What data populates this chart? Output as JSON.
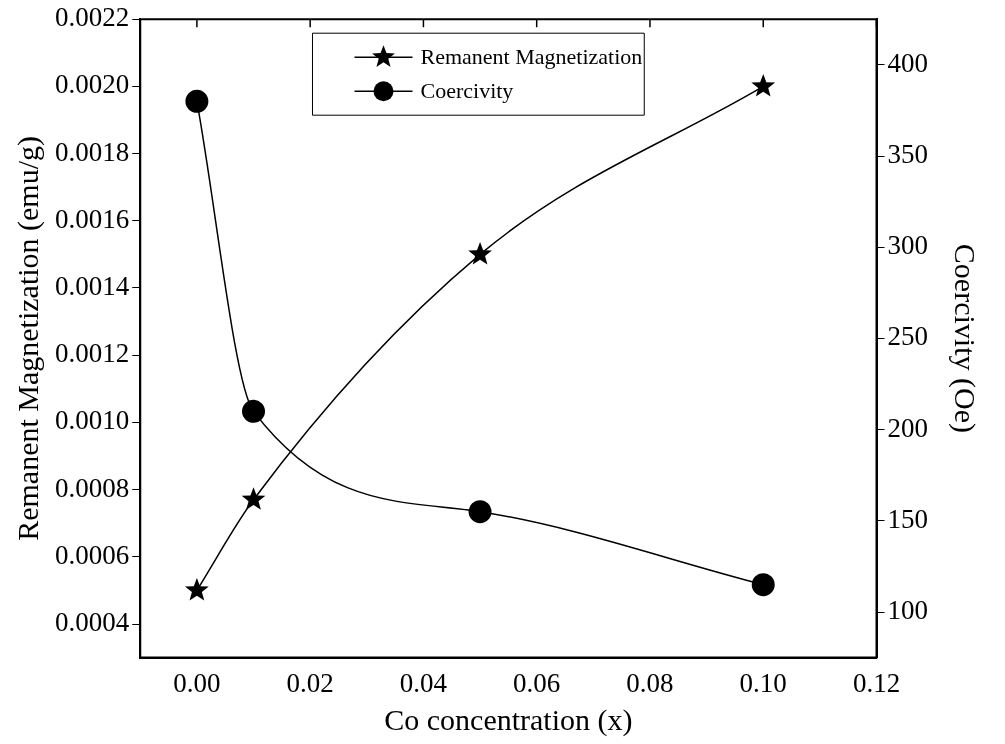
{
  "chart_data": {
    "type": "line",
    "xlabel": "Co concentration (x)",
    "ylabel": "Remanent Magnetization (emu/g)",
    "y2label": "Coercivity (Oe)",
    "xlim": [
      -0.01,
      0.12
    ],
    "xticks": [
      {
        "value": 0,
        "label": "0.00"
      },
      {
        "value": 0.02,
        "label": "0.02"
      },
      {
        "value": 0.04,
        "label": "0.04"
      },
      {
        "value": 0.06,
        "label": "0.06"
      },
      {
        "value": 0.08,
        "label": "0.08"
      },
      {
        "value": 0.1,
        "label": "0.10"
      },
      {
        "value": 0.12,
        "label": "0.12"
      }
    ],
    "ylim": [
      0.0003,
      0.0022
    ],
    "yticks": [
      {
        "value": 0.0004,
        "label": "0.0004"
      },
      {
        "value": 0.0006,
        "label": "0.0006"
      },
      {
        "value": 0.0008,
        "label": "0.0008"
      },
      {
        "value": 0.001,
        "label": "0.0010"
      },
      {
        "value": 0.0012,
        "label": "0.0012"
      },
      {
        "value": 0.0014,
        "label": "0.0014"
      },
      {
        "value": 0.0016,
        "label": "0.0016"
      },
      {
        "value": 0.0018,
        "label": "0.0018"
      },
      {
        "value": 0.002,
        "label": "0.0020"
      },
      {
        "value": 0.0022,
        "label": "0.0022"
      }
    ],
    "y2lim": [
      75,
      425
    ],
    "y2ticks": [
      100,
      150,
      200,
      250,
      300,
      350,
      400
    ],
    "x": [
      0,
      0.01,
      0.05,
      0.1
    ],
    "grid": false,
    "legend": "top",
    "series": [
      {
        "name": "Remanent Magnetization",
        "color": "#000000",
        "marker": "star",
        "values": [
          0.0005,
          0.00077,
          0.0015,
          0.002
        ]
      },
      {
        "name": "Coercivity",
        "color": "#000000",
        "marker": "circle",
        "axis": "y2",
        "values": [
          380,
          210,
          155,
          115
        ]
      }
    ]
  }
}
